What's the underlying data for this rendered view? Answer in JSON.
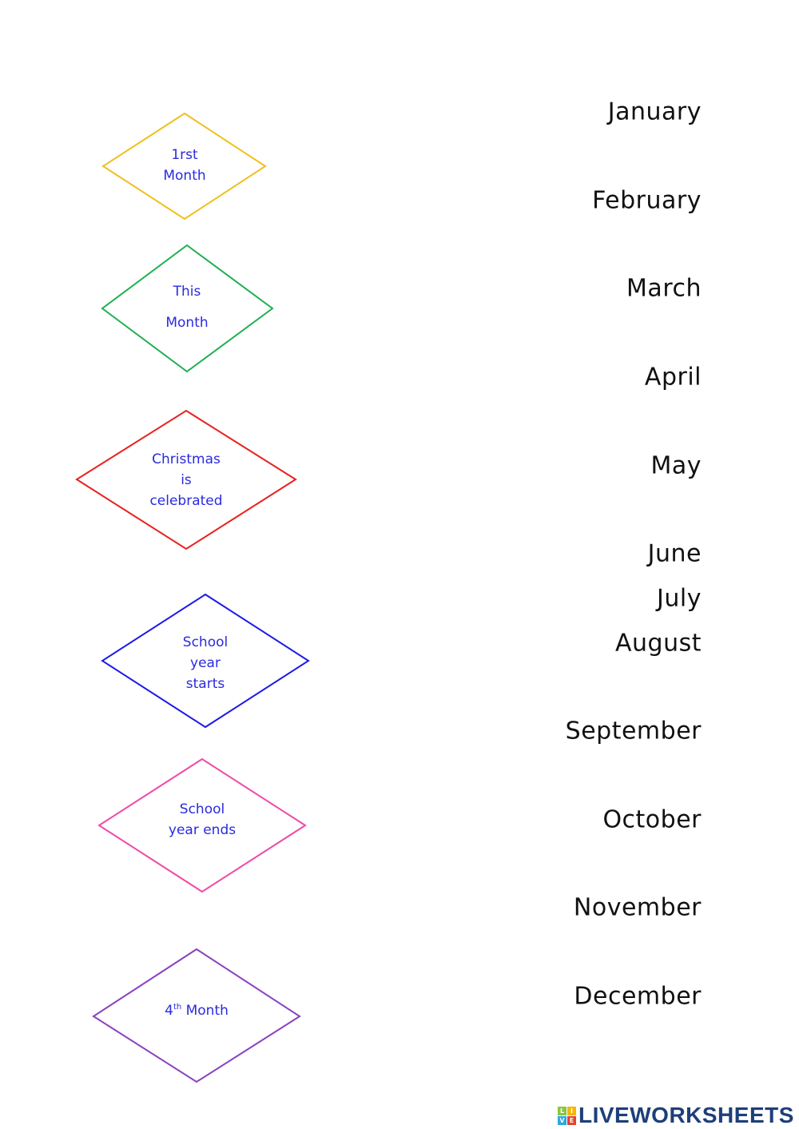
{
  "diamonds": [
    {
      "lines": [
        "1rst",
        "Month"
      ],
      "color": "#f0c020"
    },
    {
      "lines": [
        "This",
        "Month"
      ],
      "color": "#1fb050"
    },
    {
      "lines": [
        "Christmas",
        "is",
        "celebrated"
      ],
      "color": "#e82020"
    },
    {
      "lines": [
        "School",
        "year",
        "starts"
      ],
      "color": "#1a1ae8"
    },
    {
      "lines": [
        "School",
        "year ends"
      ],
      "color": "#f04aa8"
    },
    {
      "lines": [
        "4",
        "th",
        " Month"
      ],
      "color": "#8a40c0"
    }
  ],
  "months": [
    "January",
    "February",
    "March",
    "April",
    "May",
    "June",
    "July",
    "August",
    "September",
    "October",
    "November",
    "December"
  ],
  "logo": {
    "text": "LIVEWORKSHEETS",
    "letters": [
      "L",
      "I",
      "V",
      "E"
    ]
  }
}
